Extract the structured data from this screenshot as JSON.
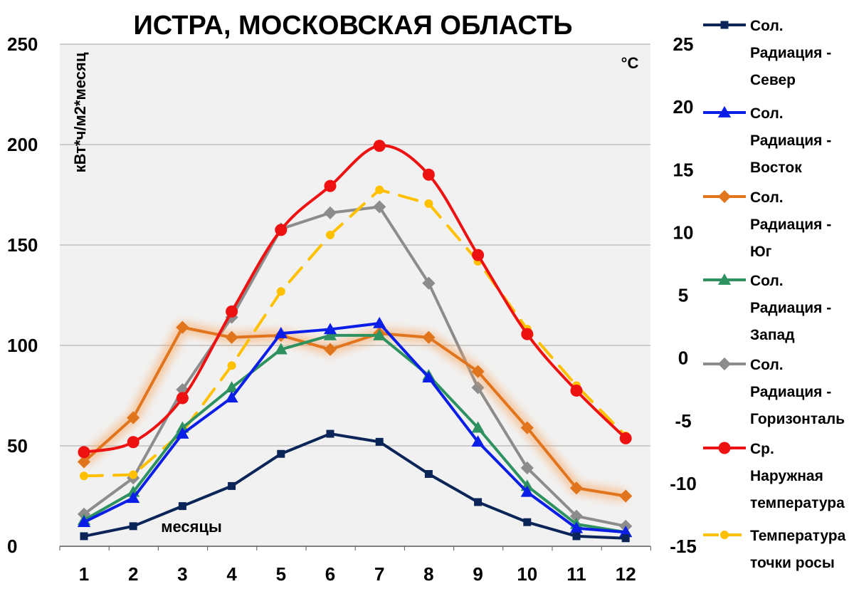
{
  "chart_data": {
    "type": "line",
    "title": "ИСТРА, МОСКОВСКАЯ ОБЛАСТЬ",
    "xlabel": "месяцы",
    "ylabel": "кВт*ч/м2*месяц",
    "y2label": "°C",
    "categories": [
      "1",
      "2",
      "3",
      "4",
      "5",
      "6",
      "7",
      "8",
      "9",
      "10",
      "11",
      "12"
    ],
    "ylim": [
      0,
      250
    ],
    "y_ticks": [
      "0",
      "50",
      "100",
      "150",
      "200",
      "250"
    ],
    "y2lim": [
      -15,
      25
    ],
    "y2_ticks": [
      "-15",
      "-10",
      "-5",
      "0",
      "5",
      "10",
      "15",
      "20",
      "25"
    ],
    "grid": true,
    "legend_position": "right",
    "series": [
      {
        "name": "Сол. Радиация - Север",
        "legend_lines": [
          "Сол.",
          "Радиация -",
          "Север"
        ],
        "axis": "left",
        "color": "#0b2558",
        "marker": "square",
        "dash": false,
        "glow": false,
        "values": [
          5,
          10,
          20,
          30,
          46,
          56,
          52,
          36,
          22,
          12,
          5,
          4
        ]
      },
      {
        "name": "Сол. Радиация - Восток",
        "legend_lines": [
          "Сол.",
          "Радиация -",
          "Восток"
        ],
        "axis": "left",
        "color": "#0b1ee8",
        "marker": "triangle",
        "dash": false,
        "glow": false,
        "values": [
          12,
          24,
          56,
          74,
          106,
          108,
          111,
          84,
          52,
          27,
          9,
          7
        ]
      },
      {
        "name": "Сол. Радиация - Юг",
        "legend_lines": [
          "Сол.",
          "Радиация -",
          "Юг"
        ],
        "axis": "left",
        "color": "#e0751e",
        "marker": "diamond",
        "dash": false,
        "glow": true,
        "values": [
          42,
          64,
          109,
          104,
          105,
          98,
          106,
          104,
          87,
          59,
          29,
          25
        ]
      },
      {
        "name": "Сол. Радиация - Запад",
        "legend_lines": [
          "Сол.",
          "Радиация -",
          "Запад"
        ],
        "axis": "left",
        "color": "#2e9260",
        "marker": "triangle",
        "dash": false,
        "glow": false,
        "values": [
          13,
          27,
          59,
          79,
          98,
          105,
          105,
          85,
          59,
          30,
          11,
          7
        ]
      },
      {
        "name": "Сол. Радиация - Горизонталь",
        "legend_lines": [
          "Сол.",
          "Радиация -",
          "Горизонталь"
        ],
        "axis": "left",
        "color": "#8c8c8c",
        "marker": "diamond",
        "dash": false,
        "glow": false,
        "values": [
          16,
          34,
          78,
          114,
          158,
          166,
          169,
          131,
          79,
          39,
          15,
          10
        ]
      },
      {
        "name": "Ср. Наружная температура",
        "legend_lines": [
          "Ср.",
          "Наружная",
          "температура"
        ],
        "axis": "right",
        "color": "#ee1111",
        "marker": "circle",
        "dash": false,
        "glow": false,
        "smooth": true,
        "values": [
          -7.5,
          -6.7,
          -3.2,
          3.7,
          10.2,
          13.7,
          16.9,
          14.6,
          8.2,
          1.9,
          -2.6,
          -6.4
        ]
      },
      {
        "name": "Температура точки росы",
        "legend_lines": [
          "Температура",
          "точки росы"
        ],
        "axis": "right",
        "color": "#ffc000",
        "marker": "circle",
        "dash": true,
        "glow": false,
        "values": [
          -9.4,
          -9.3,
          -5.9,
          -0.6,
          5.3,
          9.8,
          13.4,
          12.3,
          7.7,
          2.3,
          -2.2,
          -6.2
        ]
      }
    ]
  }
}
